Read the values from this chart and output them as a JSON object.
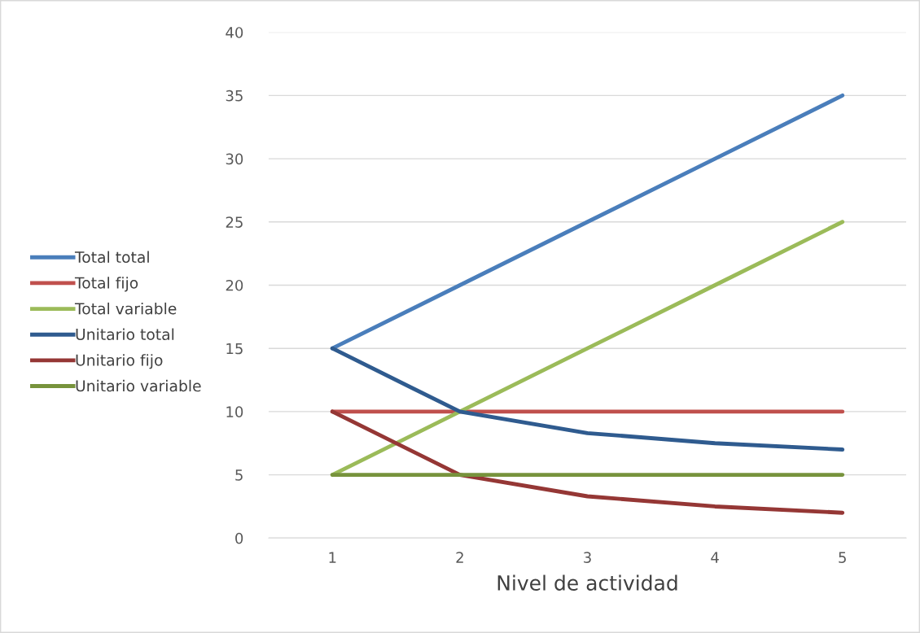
{
  "chart_data": {
    "type": "line",
    "xlabel": "Nivel de actividad",
    "categories": [
      "1",
      "2",
      "3",
      "4",
      "5"
    ],
    "series": [
      {
        "name": "Total total",
        "color": "#4a7ebb",
        "values": [
          15,
          20,
          25,
          30,
          35
        ]
      },
      {
        "name": "Total fijo",
        "color": "#c0504d",
        "values": [
          10,
          10,
          10,
          10,
          10
        ]
      },
      {
        "name": "Total variable",
        "color": "#9bbb59",
        "values": [
          5,
          10,
          15,
          20,
          25
        ]
      },
      {
        "name": "Unitario total",
        "color": "#2f5b8f",
        "values": [
          15,
          10,
          8.3,
          7.5,
          7
        ]
      },
      {
        "name": "Unitario fijo",
        "color": "#953735",
        "values": [
          10,
          5,
          3.3,
          2.5,
          2
        ]
      },
      {
        "name": "Unitario variable",
        "color": "#77933c",
        "values": [
          5,
          5,
          5,
          5,
          5
        ]
      }
    ],
    "ylim": [
      0,
      40
    ],
    "yticks": [
      0,
      5,
      10,
      15,
      20,
      25,
      30,
      35,
      40
    ],
    "grid": "y",
    "legend": "left",
    "marker": "none",
    "line_style": "solid"
  }
}
